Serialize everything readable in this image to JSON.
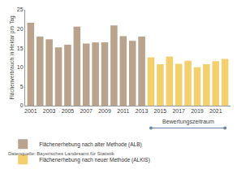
{
  "chart_data": {
    "type": "bar",
    "y_label": "Flächenverbrauch in Hektar pro Tag",
    "x": [
      2001,
      2002,
      2003,
      2004,
      2005,
      2006,
      2007,
      2008,
      2009,
      2010,
      2011,
      2012,
      2013,
      2014,
      2015,
      2016,
      2017,
      2018,
      2019,
      2020,
      2021,
      2022
    ],
    "series": [
      {
        "name": "Flächenerhebung nach alter Methode (ALB)",
        "color": "#b9a38c",
        "values": [
          21.6,
          18.0,
          17.3,
          15.2,
          15.9,
          20.6,
          16.2,
          16.5,
          16.5,
          20.9,
          18.1,
          16.9,
          18.0,
          null,
          null,
          null,
          null,
          null,
          null,
          null,
          null,
          null
        ]
      },
      {
        "name": "Flächenerhebung nach neuer Methode (ALKIS)",
        "color": "#f3cf6e",
        "values": [
          null,
          null,
          null,
          null,
          null,
          null,
          null,
          null,
          null,
          null,
          null,
          null,
          null,
          12.6,
          10.8,
          12.8,
          10.9,
          11.7,
          10.0,
          10.8,
          11.6,
          12.2
        ]
      }
    ],
    "xlim": [
      2000.4,
      2022.6
    ],
    "xticks": [
      2001,
      2003,
      2005,
      2007,
      2009,
      2011,
      2013,
      2015,
      2017,
      2019,
      2021
    ],
    "ylim": [
      0,
      25
    ],
    "yticks": [
      0,
      5,
      10,
      15,
      20,
      25
    ],
    "grid": false,
    "legend": "bottom left",
    "annotations": [
      {
        "text": "Bewertungszeitraum",
        "x_start": 2014,
        "x_end": 2022
      }
    ],
    "source": "Datenquelle: Bayerisches Landesamt für Statistik"
  }
}
